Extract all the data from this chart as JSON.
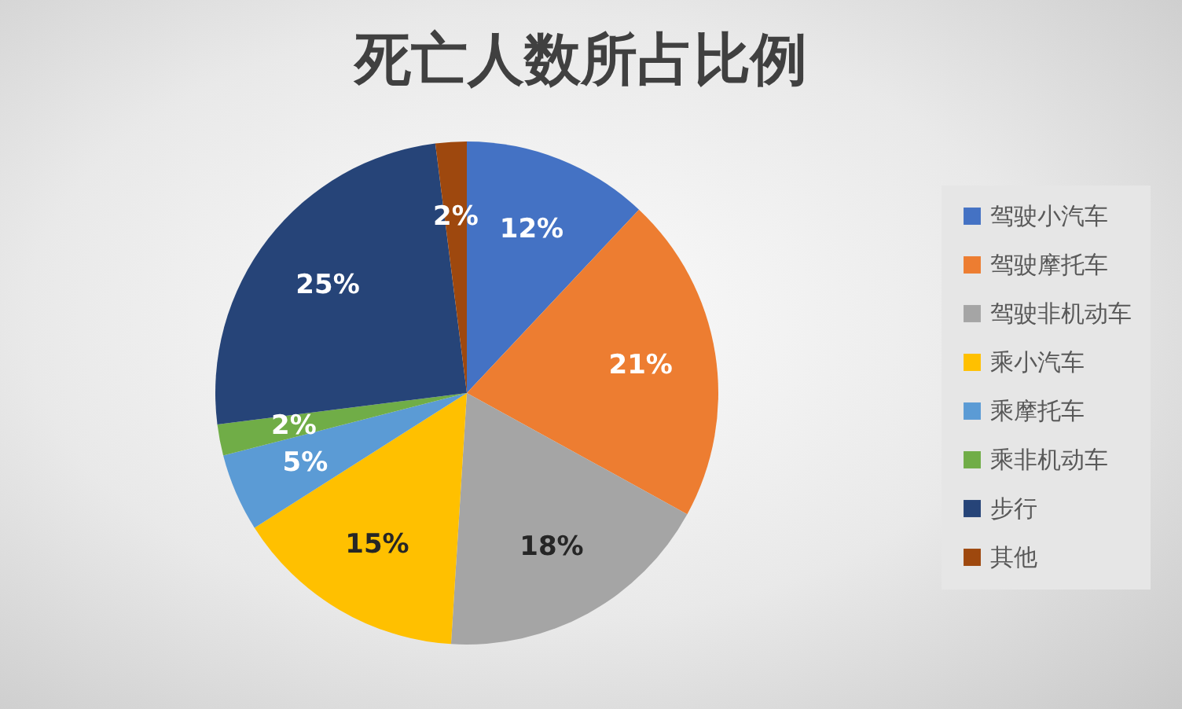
{
  "chart_data": {
    "type": "pie",
    "title": "死亡人数所占比例",
    "categories": [
      "驾驶小汽车",
      "驾驶摩托车",
      "驾驶非机动车",
      "乘小汽车",
      "乘摩托车",
      "乘非机动车",
      "步行",
      "其他"
    ],
    "values": [
      12,
      21,
      18,
      15,
      5,
      2,
      25,
      2
    ],
    "value_labels": [
      "12%",
      "21%",
      "18%",
      "15%",
      "5%",
      "2%",
      "25%",
      "2%"
    ],
    "colors": [
      "#4472c4",
      "#ed7d31",
      "#a5a5a5",
      "#ffc000",
      "#5b9bd5",
      "#70ad47",
      "#264478",
      "#9e480e"
    ],
    "legend": "right"
  }
}
